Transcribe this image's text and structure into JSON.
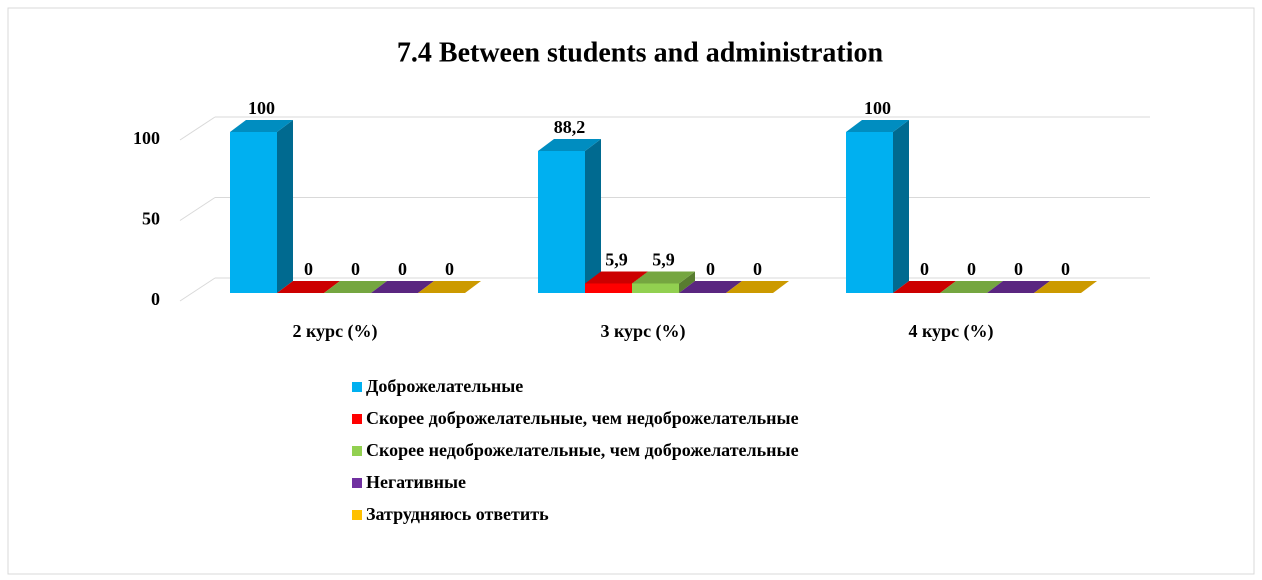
{
  "chart_data": {
    "type": "bar3d",
    "title": "7.4 Between students and administration",
    "categories": [
      "2 курс (%)",
      "3 курс (%)",
      "4 курс (%)"
    ],
    "series": [
      {
        "name": "Доброжелательные",
        "color": "#00b0f0",
        "values": [
          100,
          88.2,
          100
        ],
        "value_labels": [
          "100",
          "88,2",
          "100"
        ]
      },
      {
        "name": "Скорее доброжелательные, чем недоброжелательные",
        "color": "#ff0000",
        "values": [
          0,
          5.9,
          0
        ],
        "value_labels": [
          "0",
          "5,9",
          "0"
        ]
      },
      {
        "name": "Скорее недоброжелательные, чем доброжелательные",
        "color": "#92d050",
        "values": [
          0,
          5.9,
          0
        ],
        "value_labels": [
          "0",
          "5,9",
          "0"
        ]
      },
      {
        "name": "Негативные",
        "color": "#7030a0",
        "values": [
          0,
          0,
          0
        ],
        "value_labels": [
          "0",
          "0",
          "0"
        ]
      },
      {
        "name": "Затрудняюсь ответить",
        "color": "#ffc000",
        "values": [
          0,
          0,
          0
        ],
        "value_labels": [
          "0",
          "0",
          "0"
        ]
      }
    ],
    "ylim": [
      0,
      100
    ],
    "yticks": [
      0,
      50,
      100
    ],
    "grid": true,
    "legend": "bottom"
  }
}
